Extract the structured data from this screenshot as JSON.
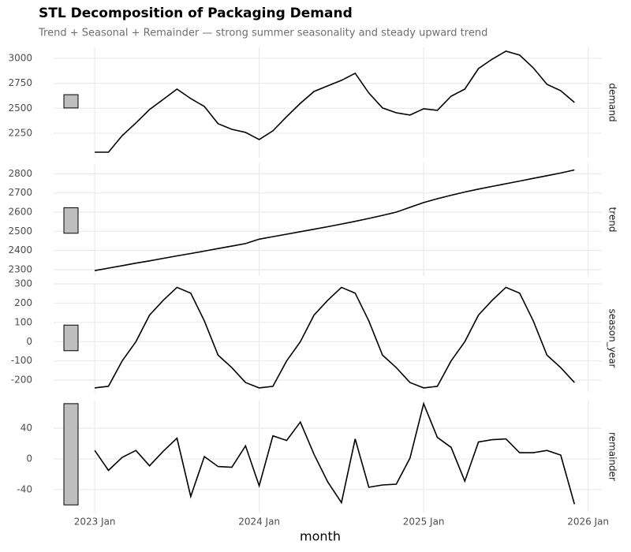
{
  "chart_data": [
    {
      "type": "line",
      "title": "STL Decomposition of Packaging Demand",
      "subtitle": "Trend + Seasonal + Remainder — strong summer seasonality and steady upward trend",
      "facet": "demand",
      "color": "#000000",
      "values": [
        2060,
        2060,
        2226,
        2353,
        2487,
        2589,
        2692,
        2597,
        2518,
        2345,
        2289,
        2258,
        2187,
        2274,
        2416,
        2550,
        2668,
        2724,
        2779,
        2850,
        2653,
        2503,
        2455,
        2432,
        2495,
        2479,
        2621,
        2692,
        2897,
        2992,
        3071,
        3032,
        2905,
        2739,
        2676,
        2558
      ],
      "ylim": [
        2005,
        3110
      ],
      "yticks": [
        2250,
        2500,
        2750,
        3000
      ],
      "scale_bar": [
        2503,
        2636
      ],
      "grid": true
    },
    {
      "type": "line",
      "facet": "trend",
      "color": "#000000",
      "values": [
        2295,
        2308,
        2321,
        2334,
        2346,
        2359,
        2372,
        2384,
        2397,
        2410,
        2423,
        2436,
        2459,
        2472,
        2485,
        2498,
        2511,
        2524,
        2538,
        2552,
        2567,
        2583,
        2600,
        2625,
        2650,
        2670,
        2688,
        2705,
        2720,
        2734,
        2748,
        2762,
        2776,
        2790,
        2804,
        2820
      ],
      "ylim": [
        2267,
        2855
      ],
      "yticks": [
        2300,
        2400,
        2500,
        2600,
        2700,
        2800
      ],
      "scale_bar": [
        2490,
        2623
      ],
      "grid": true
    },
    {
      "type": "line",
      "facet": "season_year",
      "color": "#000000",
      "values": [
        -240,
        -232,
        -100,
        0,
        138,
        215,
        282,
        252,
        108,
        -70,
        -135,
        -212,
        -240,
        -232,
        -100,
        0,
        138,
        215,
        282,
        252,
        108,
        -70,
        -135,
        -212,
        -240,
        -232,
        -100,
        0,
        138,
        215,
        282,
        252,
        108,
        -70,
        -135,
        -212
      ],
      "ylim": [
        -265,
        300
      ],
      "yticks": [
        -200,
        -100,
        0,
        100,
        200,
        300
      ],
      "scale_bar": [
        -47,
        86
      ],
      "grid": true
    },
    {
      "type": "line",
      "facet": "remainder",
      "color": "#000000",
      "values": [
        11,
        -15,
        2,
        11,
        -9,
        10,
        27,
        -49,
        3,
        -10,
        -11,
        17,
        -35,
        30,
        24,
        48,
        6,
        -30,
        -57,
        26,
        -37,
        -34,
        -33,
        1,
        72,
        28,
        15,
        -29,
        22,
        25,
        26,
        8,
        8,
        11,
        5,
        -59
      ],
      "ylim": [
        -70,
        76
      ],
      "yticks": [
        -40,
        0,
        40
      ],
      "scale_bar": [
        -60,
        72
      ],
      "grid": true,
      "x_label": "month",
      "x": [
        "2023-01",
        "2023-02",
        "2023-03",
        "2023-04",
        "2023-05",
        "2023-06",
        "2023-07",
        "2023-08",
        "2023-09",
        "2023-10",
        "2023-11",
        "2023-12",
        "2024-01",
        "2024-02",
        "2024-03",
        "2024-04",
        "2024-05",
        "2024-06",
        "2024-07",
        "2024-08",
        "2024-09",
        "2024-10",
        "2024-11",
        "2024-12",
        "2025-01",
        "2025-02",
        "2025-03",
        "2025-04",
        "2025-05",
        "2025-06",
        "2025-07",
        "2025-08",
        "2025-09",
        "2025-10",
        "2025-11",
        "2025-12"
      ],
      "xlim": [
        "2022-10",
        "2026-02"
      ],
      "xticks": [
        {
          "value": "2023-01",
          "label": "2023 Jan"
        },
        {
          "value": "2024-01",
          "label": "2024 Jan"
        },
        {
          "value": "2025-01",
          "label": "2025 Jan"
        },
        {
          "value": "2026-01",
          "label": "2026 Jan"
        }
      ]
    }
  ]
}
